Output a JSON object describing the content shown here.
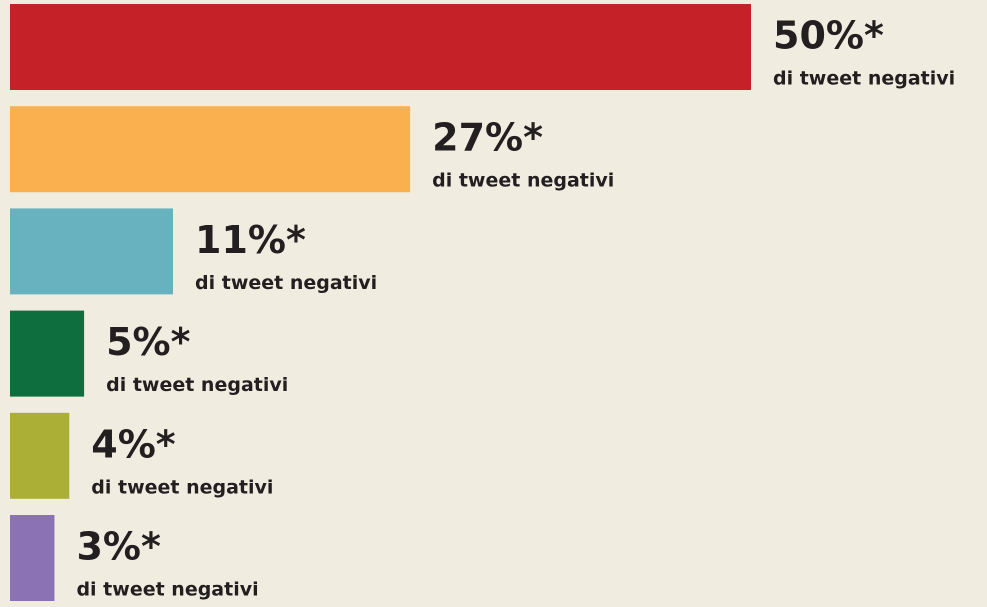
{
  "chart_data": {
    "type": "bar",
    "orientation": "horizontal",
    "values": [
      50,
      27,
      11,
      5,
      4,
      3
    ],
    "value_labels": [
      "50%*",
      "27%*",
      "11%*",
      "5%*",
      "4%*",
      "3%*"
    ],
    "sublabel": "di tweet negativi",
    "colors": [
      "#c42228",
      "#fbb050",
      "#68b2bf",
      "#0e6e3d",
      "#abaf35",
      "#8b72b5"
    ],
    "xlim": [
      0,
      50
    ]
  }
}
